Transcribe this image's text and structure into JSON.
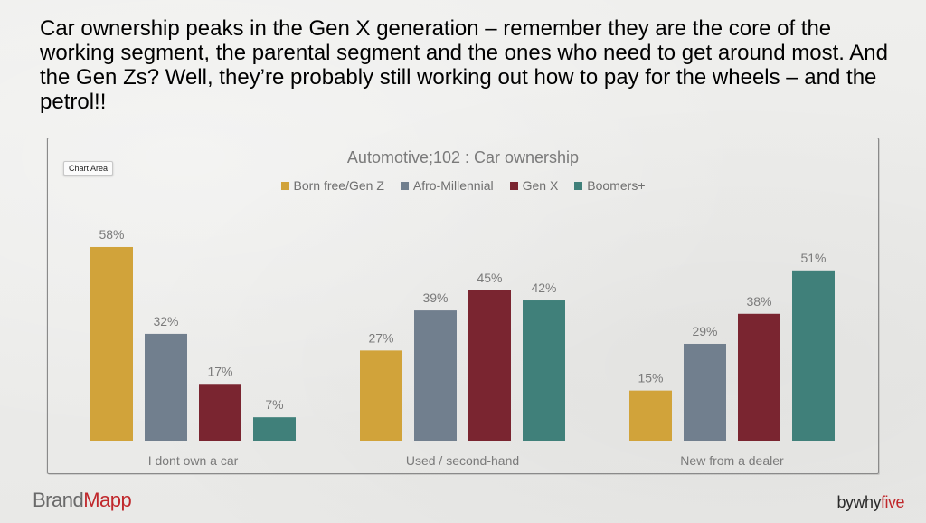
{
  "headline": "Car ownership peaks in the Gen X generation – remember they are the core of the working segment, the parental segment and the ones who need to get around most. And the Gen Zs? Well, they’re probably still working out how to pay for the wheels – and the petrol!!",
  "chart_area_tag": "Chart Area",
  "chart_data": {
    "type": "bar",
    "title": "Automotive;102 : Car ownership",
    "categories": [
      "I dont own a car",
      "Used / second-hand",
      "New from a dealer"
    ],
    "series": [
      {
        "name": "Born free/Gen Z",
        "color": "#d1a33a",
        "values": [
          58,
          27,
          15
        ],
        "labels": [
          "58%",
          "27%",
          "15%"
        ]
      },
      {
        "name": "Afro-Millennial",
        "color": "#717f8e",
        "values": [
          32,
          39,
          29
        ],
        "labels": [
          "32%",
          "39%",
          "29%"
        ]
      },
      {
        "name": "Gen X",
        "color": "#7a2530",
        "values": [
          17,
          45,
          38
        ],
        "labels": [
          "17%",
          "45%",
          "38%"
        ]
      },
      {
        "name": "Boomers+",
        "color": "#40807a",
        "values": [
          7,
          42,
          51
        ],
        "labels": [
          "7%",
          "42%",
          "51%"
        ]
      }
    ],
    "value_format": "percent",
    "legend_position": "top",
    "grid": false,
    "xlabel": "",
    "ylabel": ""
  },
  "footer": {
    "brand_left_a": "Brand",
    "brand_left_b": "Mapp",
    "brand_right_a": "bywhy",
    "brand_right_b": "five"
  }
}
